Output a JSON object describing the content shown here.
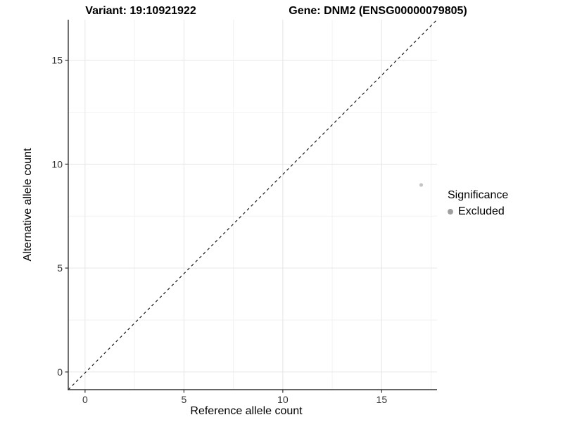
{
  "header": {
    "variant_title": "Variant: 19:10921922",
    "gene_title": "Gene: DNM2 (ENSG00000079805)"
  },
  "legend": {
    "title": "Significance",
    "items": [
      {
        "label": "Excluded",
        "color": "#9f9f9f"
      }
    ]
  },
  "chart_data": {
    "type": "scatter",
    "title": "Variant: 19:10921922    Gene: DNM2 (ENSG00000079805)",
    "xlabel": "Reference allele count",
    "ylabel": "Alternative allele count",
    "xlim": [
      -0.85,
      17.8
    ],
    "ylim": [
      -0.85,
      16.95
    ],
    "x_ticks": [
      0,
      5,
      10,
      15
    ],
    "y_ticks": [
      0,
      5,
      10,
      15
    ],
    "x_minor_gridlines": [
      2.5,
      7.5,
      12.5,
      17.5
    ],
    "y_minor_gridlines": [
      2.5,
      7.5,
      12.5
    ],
    "grid": true,
    "legend_position": "right",
    "series": [
      {
        "name": "Excluded",
        "color": "#c4c4c4",
        "points": [
          {
            "x": 17,
            "y": 9
          }
        ]
      }
    ],
    "reference_line": {
      "type": "identity",
      "slope": 1,
      "intercept": 0,
      "linetype": "dashed",
      "color": "#1a1a1a"
    },
    "colors": {
      "grid_major": "#e6e6e6",
      "grid_minor": "#f2f2f2",
      "axis_line": "#333333",
      "tick_text": "#333333"
    }
  }
}
